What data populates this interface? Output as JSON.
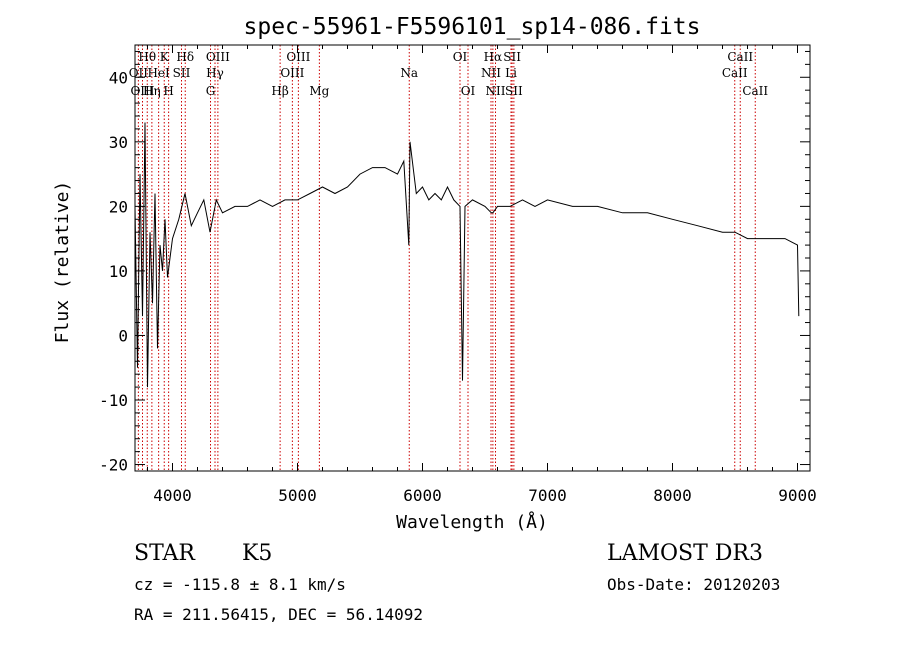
{
  "chart_data": {
    "type": "line",
    "title": "spec-55961-F5596101_sp14-086.fits",
    "xlabel": "Wavelength (Å)",
    "ylabel": "Flux (relative)",
    "xlim": [
      3700,
      9100
    ],
    "ylim": [
      -21,
      45
    ],
    "x_ticks": [
      4000,
      5000,
      6000,
      7000,
      8000,
      9000
    ],
    "x_tick_labels": [
      "4000",
      "5000",
      "6000",
      "7000",
      "8000",
      "9000"
    ],
    "y_ticks": [
      -20,
      -10,
      0,
      10,
      20,
      30,
      40
    ],
    "y_tick_labels": [
      "-20",
      "-10",
      "0",
      "10",
      "20",
      "30",
      "40"
    ],
    "series": [
      {
        "name": "spectrum",
        "color": "#000000",
        "x": [
          3700,
          3720,
          3740,
          3760,
          3780,
          3800,
          3820,
          3840,
          3860,
          3880,
          3900,
          3920,
          3940,
          3960,
          3980,
          4000,
          4050,
          4100,
          4150,
          4200,
          4250,
          4300,
          4350,
          4400,
          4500,
          4600,
          4700,
          4800,
          4900,
          5000,
          5100,
          5200,
          5300,
          5400,
          5500,
          5600,
          5700,
          5800,
          5850,
          5890,
          5900,
          5950,
          6000,
          6050,
          6100,
          6150,
          6200,
          6250,
          6300,
          6320,
          6340,
          6400,
          6500,
          6550,
          6563,
          6600,
          6700,
          6800,
          6900,
          7000,
          7200,
          7400,
          7600,
          7800,
          8000,
          8200,
          8400,
          8500,
          8600,
          8700,
          8800,
          8900,
          9000,
          9010
        ],
        "y": [
          20,
          -5,
          25,
          3,
          33,
          -8,
          16,
          5,
          22,
          -2,
          14,
          10,
          18,
          9,
          12,
          15,
          18,
          22,
          17,
          19,
          21,
          16,
          21,
          19,
          20,
          20,
          21,
          20,
          21,
          21,
          22,
          23,
          22,
          23,
          25,
          26,
          26,
          25,
          27,
          14,
          30,
          22,
          23,
          21,
          22,
          21,
          23,
          21,
          20,
          -7,
          20,
          21,
          20,
          19,
          19,
          20,
          20,
          21,
          20,
          21,
          20,
          20,
          19,
          19,
          18,
          17,
          16,
          16,
          15,
          15,
          15,
          15,
          14,
          3
        ]
      }
    ],
    "annotations": [
      {
        "label": "Hθ",
        "x": 3798,
        "row": 1
      },
      {
        "label": "OII",
        "x": 3727,
        "row": 2
      },
      {
        "label": "HeI",
        "x": 3889,
        "row": 2
      },
      {
        "label": "OIII",
        "x": 3760,
        "row": 3
      },
      {
        "label": "Hη",
        "x": 3835,
        "row": 3
      },
      {
        "label": "K",
        "x": 3934,
        "row": 1
      },
      {
        "label": "H",
        "x": 3969,
        "row": 3
      },
      {
        "label": "SII",
        "x": 4072,
        "row": 2
      },
      {
        "label": "Hδ",
        "x": 4102,
        "row": 1
      },
      {
        "label": "OIII",
        "x": 4363,
        "row": 1
      },
      {
        "label": "Hγ",
        "x": 4340,
        "row": 2
      },
      {
        "label": "G",
        "x": 4304,
        "row": 3
      },
      {
        "label": "Hβ",
        "x": 4861,
        "row": 3
      },
      {
        "label": "OIII",
        "x": 5007,
        "row": 1
      },
      {
        "label": "OIII",
        "x": 4959,
        "row": 2
      },
      {
        "label": "Mg",
        "x": 5175,
        "row": 3
      },
      {
        "label": "Na",
        "x": 5894,
        "row": 2
      },
      {
        "label": "OI",
        "x": 6300,
        "row": 1
      },
      {
        "label": "OI",
        "x": 6364,
        "row": 3
      },
      {
        "label": "Hα",
        "x": 6563,
        "row": 1
      },
      {
        "label": "SII",
        "x": 6717,
        "row": 1
      },
      {
        "label": "NII",
        "x": 6548,
        "row": 2
      },
      {
        "label": "Li",
        "x": 6708,
        "row": 2
      },
      {
        "label": "NII",
        "x": 6584,
        "row": 3
      },
      {
        "label": "SII",
        "x": 6731,
        "row": 3
      },
      {
        "label": "CaII",
        "x": 8542,
        "row": 1
      },
      {
        "label": "CaII",
        "x": 8498,
        "row": 2
      },
      {
        "label": "CaII",
        "x": 8662,
        "row": 3
      }
    ]
  },
  "info": {
    "object_class": "STAR",
    "subclass": "K5",
    "survey": "LAMOST DR3",
    "redshift": "cz = -115.8 ± 8.1 km/s",
    "obs_date": "Obs-Date: 20120203",
    "coords": "RA = 211.56415, DEC =  56.14092"
  },
  "colors": {
    "spectrum": "#000000",
    "line_marker": "#cc0000",
    "axis": "#000000"
  }
}
